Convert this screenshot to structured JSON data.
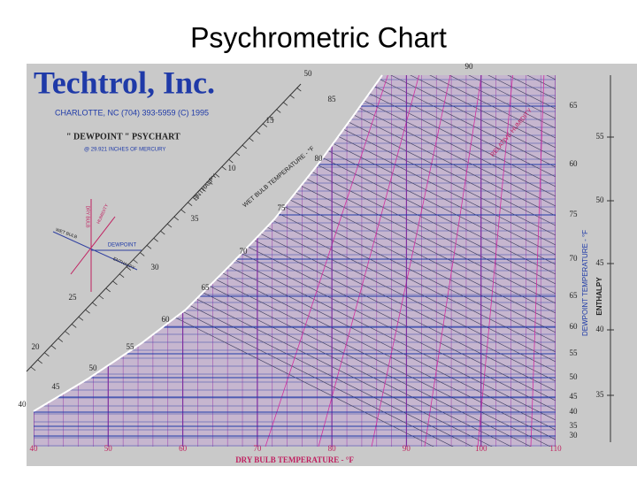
{
  "title": "Psychrometric Chart",
  "logo": {
    "name": "Techtrol, Inc.",
    "address": "CHARLOTTE, NC (704) 393-5959 (C) 1995",
    "product": "\" DEWPOINT \" PSYCHART",
    "pressure": "@ 29.921 INCHES OF MERCURY"
  },
  "key": {
    "dry_bulb": "DRY BULB",
    "humidity": "HUMIDITY",
    "wet_bulb": "WET BULB",
    "enthalpy": "ENTHALPY",
    "dewpoint": "DEWPOINT"
  },
  "labels": {
    "x_axis": "DRY BULB TEMPERATURE - °F",
    "dewpoint_axis": "DEWPOINT TEMPERATURE - °F",
    "enthalpy_axis": "ENTHALPY",
    "wet_bulb_axis": "WET BULB TEMPERATURE - °F",
    "enthalpy_diag": "ENTHALPY",
    "rh": "RELATIVE HUMIDITY"
  },
  "dry_bulb_ticks": [
    40,
    50,
    60,
    70,
    80,
    90,
    100,
    110
  ],
  "dewpoint_ticks": [
    30,
    35,
    40,
    45,
    50,
    55,
    60,
    65,
    70,
    75,
    60,
    65
  ],
  "enthalpy_ticks": [
    35,
    40,
    45,
    50,
    55
  ],
  "wet_bulb_ticks": [
    40,
    45,
    50,
    55,
    60,
    65,
    70,
    75,
    80,
    85,
    50,
    90
  ],
  "enthalpy_diag_ticks": [
    20,
    25,
    30,
    35,
    10,
    15
  ]
}
